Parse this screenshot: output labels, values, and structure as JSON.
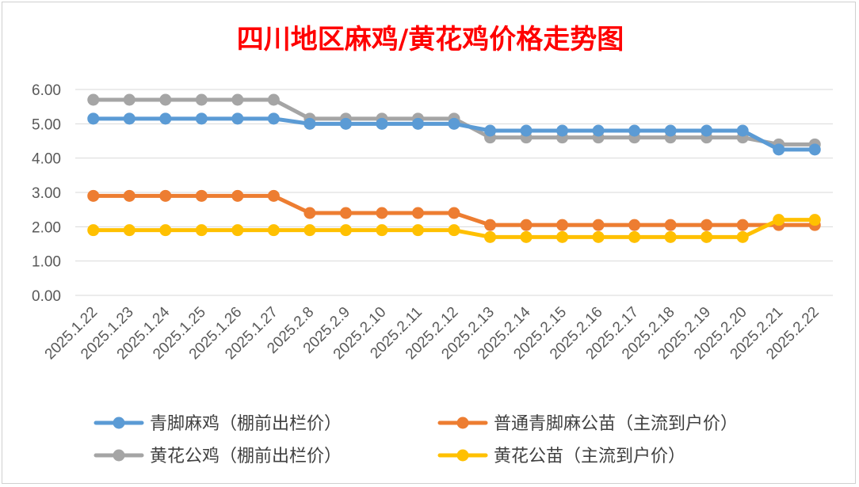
{
  "chart_data": {
    "type": "line",
    "title": "四川地区麻鸡/黄花鸡价格走势图",
    "title_color": "#ff0000",
    "xlabel": "",
    "ylabel": "",
    "ylim": [
      0,
      6
    ],
    "y_ticks": [
      "0.00",
      "1.00",
      "2.00",
      "3.00",
      "4.00",
      "5.00",
      "6.00"
    ],
    "grid": true,
    "legend_position": "bottom",
    "categories": [
      "2025.1.22",
      "2025.1.23",
      "2025.1.24",
      "2025.1.25",
      "2025.1.26",
      "2025.1.27",
      "2025.2.8",
      "2025.2.9",
      "2025.2.10",
      "2025.2.11",
      "2025.2.12",
      "2025.2.13",
      "2025.2.14",
      "2025.2.15",
      "2025.2.16",
      "2025.2.17",
      "2025.2.18",
      "2025.2.19",
      "2025.2.20",
      "2025.2.21",
      "2025.2.22"
    ],
    "series": [
      {
        "name": "青脚麻鸡（棚前出栏价）",
        "color": "#5b9bd5",
        "values": [
          5.15,
          5.15,
          5.15,
          5.15,
          5.15,
          5.15,
          5.0,
          5.0,
          5.0,
          5.0,
          5.0,
          4.8,
          4.8,
          4.8,
          4.8,
          4.8,
          4.8,
          4.8,
          4.8,
          4.25,
          4.25
        ]
      },
      {
        "name": "普通青脚麻公苗（主流到户价）",
        "color": "#ed7d31",
        "values": [
          2.9,
          2.9,
          2.9,
          2.9,
          2.9,
          2.9,
          2.4,
          2.4,
          2.4,
          2.4,
          2.4,
          2.05,
          2.05,
          2.05,
          2.05,
          2.05,
          2.05,
          2.05,
          2.05,
          2.05,
          2.05
        ]
      },
      {
        "name": "黄花公鸡（棚前出栏价）",
        "color": "#a5a5a5",
        "values": [
          5.7,
          5.7,
          5.7,
          5.7,
          5.7,
          5.7,
          5.15,
          5.15,
          5.15,
          5.15,
          5.15,
          4.6,
          4.6,
          4.6,
          4.6,
          4.6,
          4.6,
          4.6,
          4.6,
          4.4,
          4.4
        ]
      },
      {
        "name": "黄花公苗（主流到户价）",
        "color": "#ffc000",
        "values": [
          1.9,
          1.9,
          1.9,
          1.9,
          1.9,
          1.9,
          1.9,
          1.9,
          1.9,
          1.9,
          1.9,
          1.7,
          1.7,
          1.7,
          1.7,
          1.7,
          1.7,
          1.7,
          1.7,
          2.2,
          2.2
        ]
      }
    ],
    "legend_order": [
      0,
      1,
      2,
      3
    ]
  }
}
